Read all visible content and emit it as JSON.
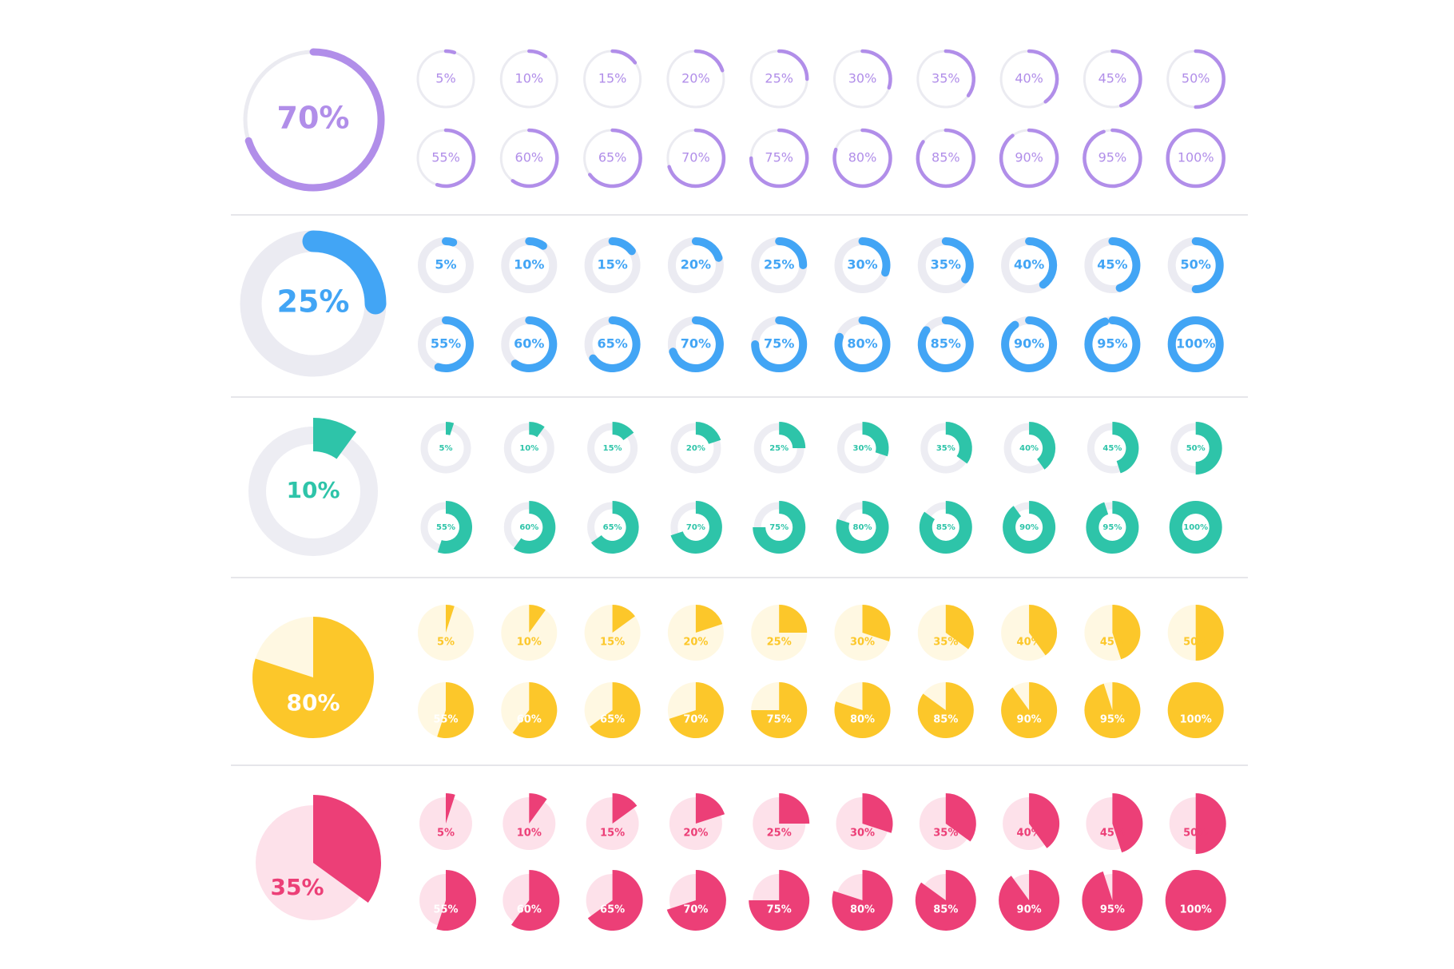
{
  "chart_data": [
    {
      "type": "ring",
      "color": "#b18ee9",
      "track_color": "#ebebf1",
      "featured": 70,
      "featured_label": "70%",
      "values": [
        5,
        10,
        15,
        20,
        25,
        30,
        35,
        40,
        45,
        50,
        55,
        60,
        65,
        70,
        75,
        80,
        85,
        90,
        95,
        100
      ],
      "value_labels": [
        "5%",
        "10%",
        "15%",
        "20%",
        "25%",
        "30%",
        "35%",
        "40%",
        "45%",
        "50%",
        "55%",
        "60%",
        "65%",
        "70%",
        "75%",
        "80%",
        "85%",
        "90%",
        "95%",
        "100%"
      ]
    },
    {
      "type": "donut",
      "color": "#42a5f5",
      "track_color": "#ebebf2",
      "featured": 25,
      "featured_label": "25%",
      "values": [
        5,
        10,
        15,
        20,
        25,
        30,
        35,
        40,
        45,
        50,
        55,
        60,
        65,
        70,
        75,
        80,
        85,
        90,
        95,
        100
      ],
      "value_labels": [
        "5%",
        "10%",
        "15%",
        "20%",
        "25%",
        "30%",
        "35%",
        "40%",
        "45%",
        "50%",
        "55%",
        "60%",
        "65%",
        "70%",
        "75%",
        "80%",
        "85%",
        "90%",
        "95%",
        "100%"
      ]
    },
    {
      "type": "segment",
      "color": "#2ec4a9",
      "track_color": "#ededf3",
      "featured": 10,
      "featured_label": "10%",
      "values": [
        5,
        10,
        15,
        20,
        25,
        30,
        35,
        40,
        45,
        50,
        55,
        60,
        65,
        70,
        75,
        80,
        85,
        90,
        95,
        100
      ],
      "value_labels": [
        "5%",
        "10%",
        "15%",
        "20%",
        "25%",
        "30%",
        "35%",
        "40%",
        "45%",
        "50%",
        "55%",
        "60%",
        "65%",
        "70%",
        "75%",
        "80%",
        "85%",
        "90%",
        "95%",
        "100%"
      ]
    },
    {
      "type": "pie",
      "color": "#fcc72a",
      "track_color": "#fff8e2",
      "featured": 80,
      "featured_label": "80%",
      "values": [
        5,
        10,
        15,
        20,
        25,
        30,
        35,
        40,
        45,
        50,
        55,
        60,
        65,
        70,
        75,
        80,
        85,
        90,
        95,
        100
      ],
      "value_labels": [
        "5%",
        "10%",
        "15%",
        "20%",
        "25%",
        "30%",
        "35%",
        "40%",
        "45%",
        "50%",
        "55%",
        "60%",
        "65%",
        "70%",
        "75%",
        "80%",
        "85%",
        "90%",
        "95%",
        "100%"
      ]
    },
    {
      "type": "popout",
      "color": "#ec3f77",
      "track_color": "#fde1ea",
      "featured": 35,
      "featured_label": "35%",
      "values": [
        5,
        10,
        15,
        20,
        25,
        30,
        35,
        40,
        45,
        50,
        55,
        60,
        65,
        70,
        75,
        80,
        85,
        90,
        95,
        100
      ],
      "value_labels": [
        "5%",
        "10%",
        "15%",
        "20%",
        "25%",
        "30%",
        "35%",
        "40%",
        "45%",
        "50%",
        "55%",
        "60%",
        "65%",
        "70%",
        "75%",
        "80%",
        "85%",
        "90%",
        "95%",
        "100%"
      ]
    }
  ]
}
